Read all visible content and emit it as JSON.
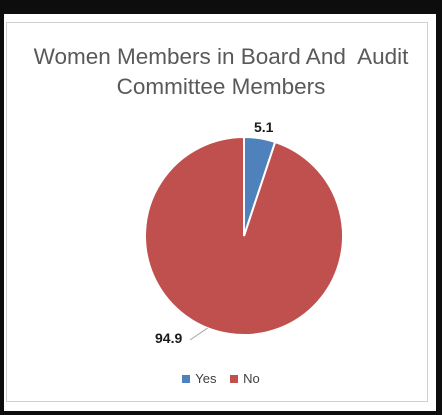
{
  "chart_data": {
    "type": "pie",
    "title_lines": [
      "Women Members in Board And  Audit",
      "Committee Members"
    ],
    "categories": [
      "Yes",
      "No"
    ],
    "values": [
      5.1,
      94.9
    ],
    "colors": [
      "#4f81bd",
      "#c0504d"
    ],
    "data_labels": [
      "5.1",
      "94.9"
    ],
    "legend_position": "bottom"
  }
}
